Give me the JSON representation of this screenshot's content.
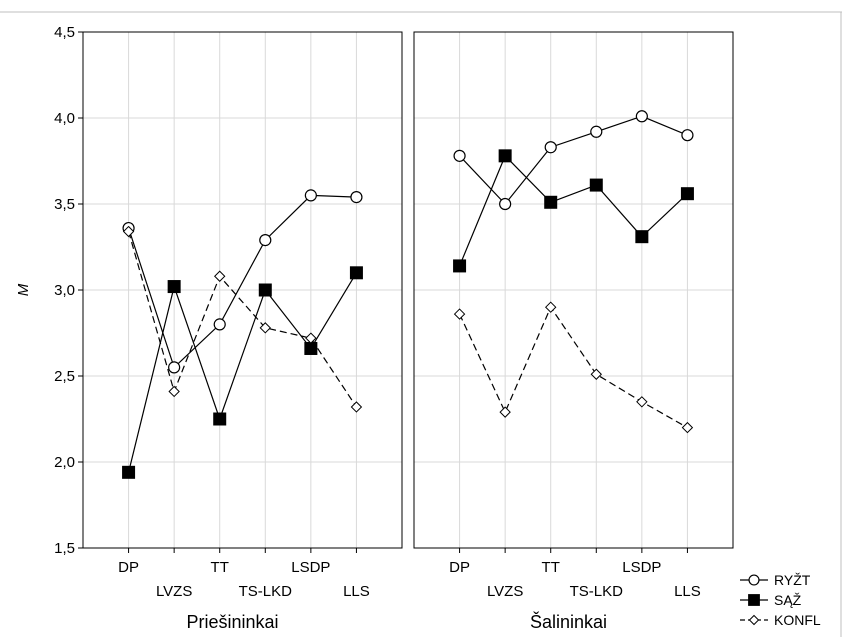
{
  "chart_data": {
    "type": "line",
    "ylabel": "M",
    "ylim": [
      1.5,
      4.5
    ],
    "yticks": [
      "1,5",
      "2,0",
      "2,5",
      "3,0",
      "3,5",
      "4,0",
      "4,5"
    ],
    "ytick_values": [
      1.5,
      2.0,
      2.5,
      3.0,
      3.5,
      4.0,
      4.5
    ],
    "categories": [
      "DP",
      "LVZS",
      "TT",
      "TS-LKD",
      "LSDP",
      "LLS"
    ],
    "grid": true,
    "legend_placement": "bottom-right",
    "panels": [
      {
        "title": "Priešininkai",
        "series": [
          {
            "name": "RYŽT",
            "marker": "circle-open",
            "line": "solid",
            "values": [
              3.36,
              2.55,
              2.8,
              3.29,
              3.55,
              3.54
            ]
          },
          {
            "name": "SĄŽ",
            "marker": "square-filled",
            "line": "solid",
            "values": [
              1.94,
              3.02,
              2.25,
              3.0,
              2.66,
              3.1
            ]
          },
          {
            "name": "KONFL",
            "marker": "diamond-open",
            "line": "dashed",
            "values": [
              3.34,
              2.41,
              3.08,
              2.78,
              2.72,
              2.32
            ]
          }
        ]
      },
      {
        "title": "Šalininkai",
        "series": [
          {
            "name": "RYŽT",
            "marker": "circle-open",
            "line": "solid",
            "values": [
              3.78,
              3.5,
              3.83,
              3.92,
              4.01,
              3.9
            ]
          },
          {
            "name": "SĄŽ",
            "marker": "square-filled",
            "line": "solid",
            "values": [
              3.14,
              3.78,
              3.51,
              3.61,
              3.31,
              3.56
            ]
          },
          {
            "name": "KONFL",
            "marker": "diamond-open",
            "line": "dashed",
            "values": [
              2.86,
              2.29,
              2.9,
              2.51,
              2.35,
              2.2
            ]
          }
        ]
      }
    ],
    "legend": [
      {
        "label": "RYŽT",
        "marker": "circle-open",
        "line": "solid"
      },
      {
        "label": "SĄŽ",
        "marker": "square-filled",
        "line": "solid"
      },
      {
        "label": "KONFL",
        "marker": "diamond-open",
        "line": "dashed"
      }
    ],
    "colors": {
      "line": "#000000",
      "grid": "#d9d9d9",
      "background": "#ffffff"
    }
  }
}
